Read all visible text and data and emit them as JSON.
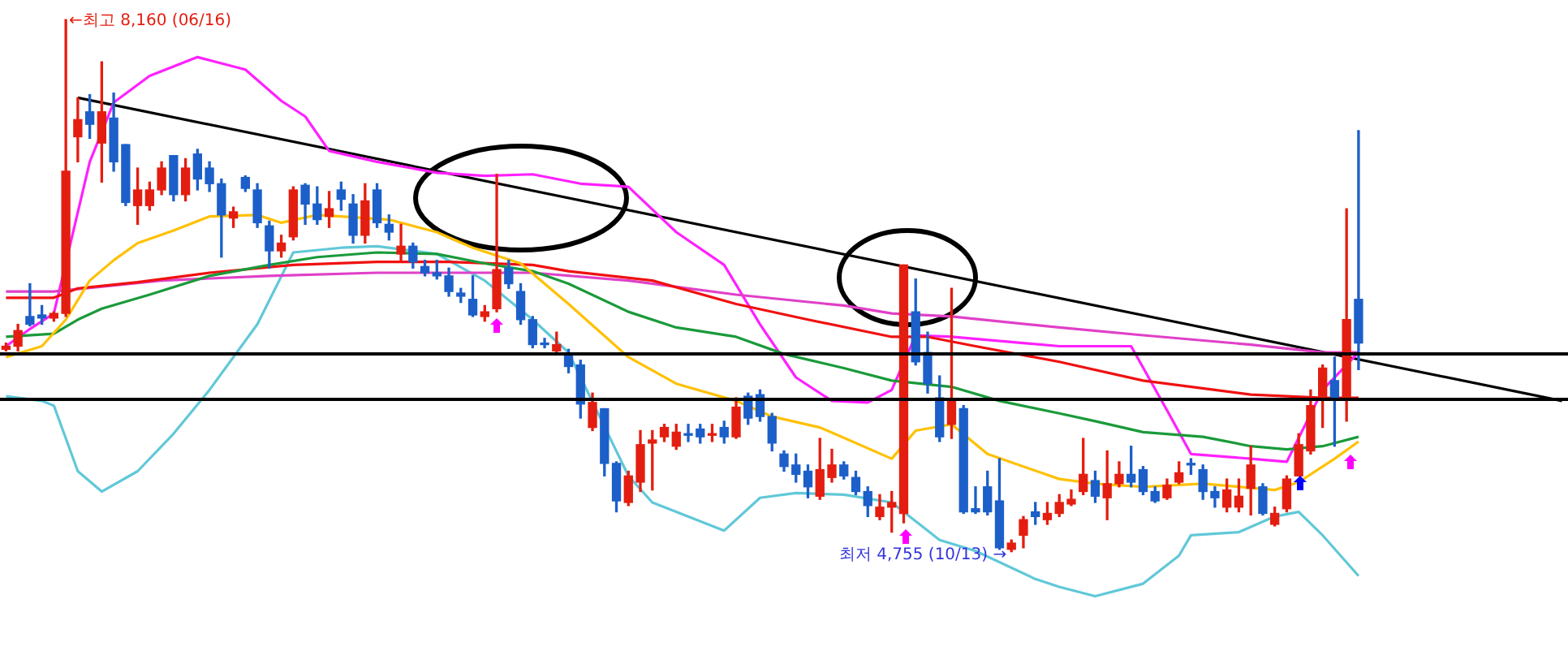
{
  "chart_data": {
    "type": "candlestick",
    "tick_labels": false,
    "legend": false,
    "categories": [
      null,
      null,
      null,
      null,
      null,
      null,
      null,
      null,
      null,
      null,
      null,
      null,
      null,
      null,
      null,
      null,
      null,
      null,
      null,
      null,
      null,
      null,
      null,
      null,
      null,
      null,
      null,
      null,
      null,
      null,
      null,
      null,
      null,
      null,
      null,
      null,
      null,
      null,
      null,
      null,
      null,
      null,
      null,
      null,
      null,
      null,
      null,
      null,
      null,
      null,
      null,
      null,
      null,
      null,
      null,
      null,
      null,
      null,
      null,
      null,
      null,
      null,
      null,
      null,
      null,
      null,
      null,
      null,
      null,
      null,
      null,
      null,
      null,
      null,
      null,
      null,
      null,
      null,
      null,
      null,
      null,
      null,
      null,
      null,
      null,
      null,
      null,
      null,
      null,
      null,
      null,
      null,
      null,
      null,
      null,
      null,
      null,
      null,
      null,
      null,
      null,
      null,
      null,
      null,
      null,
      null,
      null,
      null,
      null,
      null,
      null,
      null,
      null,
      null,
      null,
      null,
      null,
      null,
      null,
      null,
      null,
      null,
      null,
      null,
      null,
      null,
      null,
      null,
      null,
      null,
      null
    ],
    "ohlc": [
      [
        6050,
        6090,
        6040,
        6070
      ],
      [
        6070,
        6210,
        6040,
        6170
      ],
      [
        6260,
        6470,
        6200,
        6210
      ],
      [
        6270,
        6330,
        6210,
        6250
      ],
      [
        6250,
        6290,
        6230,
        6280
      ],
      [
        6280,
        8160,
        6260,
        7190
      ],
      [
        7410,
        7660,
        7250,
        7520
      ],
      [
        7570,
        7680,
        7400,
        7490
      ],
      [
        7370,
        7890,
        7120,
        7570
      ],
      [
        7530,
        7690,
        7190,
        7250
      ],
      [
        7360,
        7360,
        6970,
        6990
      ],
      [
        6970,
        7210,
        6850,
        7070
      ],
      [
        6970,
        7120,
        6940,
        7070
      ],
      [
        7070,
        7250,
        7040,
        7210
      ],
      [
        7290,
        7290,
        7000,
        7040
      ],
      [
        7040,
        7270,
        7000,
        7210
      ],
      [
        7300,
        7330,
        7070,
        7140
      ],
      [
        7210,
        7250,
        7060,
        7110
      ],
      [
        7110,
        7140,
        6640,
        6910
      ],
      [
        6890,
        6960,
        6830,
        6930
      ],
      [
        7150,
        7160,
        7060,
        7080
      ],
      [
        7070,
        7110,
        6830,
        6860
      ],
      [
        6840,
        6870,
        6570,
        6680
      ],
      [
        6680,
        6780,
        6640,
        6730
      ],
      [
        6770,
        7090,
        6750,
        7070
      ],
      [
        7100,
        7110,
        6850,
        6980
      ],
      [
        6980,
        7090,
        6850,
        6880
      ],
      [
        6900,
        7060,
        6830,
        6950
      ],
      [
        7070,
        7120,
        6940,
        7010
      ],
      [
        6980,
        7040,
        6730,
        6780
      ],
      [
        6780,
        7110,
        6730,
        7000
      ],
      [
        7070,
        7110,
        6830,
        6860
      ],
      [
        6850,
        6910,
        6750,
        6800
      ],
      [
        6660,
        6850,
        6620,
        6710
      ],
      [
        6710,
        6730,
        6570,
        6610
      ],
      [
        6580,
        6620,
        6520,
        6540
      ],
      [
        6540,
        6620,
        6500,
        6520
      ],
      [
        6520,
        6570,
        6390,
        6420
      ],
      [
        6410,
        6440,
        6350,
        6390
      ],
      [
        6370,
        6520,
        6260,
        6270
      ],
      [
        6260,
        6330,
        6230,
        6290
      ],
      [
        6310,
        7170,
        6290,
        6560
      ],
      [
        6570,
        6620,
        6440,
        6470
      ],
      [
        6420,
        6470,
        6210,
        6240
      ],
      [
        6240,
        6260,
        6060,
        6080
      ],
      [
        6090,
        6120,
        6060,
        6080
      ],
      [
        6040,
        6160,
        6020,
        6080
      ],
      [
        6020,
        6050,
        5900,
        5940
      ],
      [
        5950,
        5980,
        5610,
        5700
      ],
      [
        5550,
        5770,
        5530,
        5710
      ],
      [
        5670,
        5670,
        5240,
        5320
      ],
      [
        5320,
        5330,
        5010,
        5080
      ],
      [
        5070,
        5270,
        5050,
        5240
      ],
      [
        5200,
        5530,
        5140,
        5440
      ],
      [
        5450,
        5530,
        5150,
        5470
      ],
      [
        5490,
        5570,
        5460,
        5550
      ],
      [
        5430,
        5570,
        5410,
        5520
      ],
      [
        5510,
        5570,
        5460,
        5500
      ],
      [
        5540,
        5570,
        5450,
        5490
      ],
      [
        5500,
        5570,
        5460,
        5510
      ],
      [
        5550,
        5590,
        5450,
        5490
      ],
      [
        5490,
        5740,
        5480,
        5680
      ],
      [
        5750,
        5770,
        5570,
        5610
      ],
      [
        5760,
        5790,
        5590,
        5620
      ],
      [
        5620,
        5640,
        5400,
        5450
      ],
      [
        5380,
        5400,
        5270,
        5300
      ],
      [
        5310,
        5380,
        5200,
        5250
      ],
      [
        5270,
        5310,
        5100,
        5170
      ],
      [
        5110,
        5480,
        5090,
        5280
      ],
      [
        5230,
        5410,
        5200,
        5310
      ],
      [
        5310,
        5330,
        5220,
        5240
      ],
      [
        5230,
        5270,
        5120,
        5140
      ],
      [
        5140,
        5170,
        4980,
        5050
      ],
      [
        4980,
        5120,
        4960,
        5040
      ],
      [
        5040,
        5140,
        4880,
        5070
      ],
      [
        5000,
        6590,
        4940,
        6590
      ],
      [
        6290,
        6500,
        5950,
        5970
      ],
      [
        6030,
        6160,
        5770,
        5830
      ],
      [
        5740,
        5880,
        5460,
        5490
      ],
      [
        5570,
        6440,
        5480,
        5720
      ],
      [
        5670,
        5690,
        5000,
        5010
      ],
      [
        5030,
        5170,
        5000,
        5010
      ],
      [
        5170,
        5270,
        4990,
        5010
      ],
      [
        5080,
        5350,
        4770,
        4780
      ],
      [
        4770,
        4830,
        4755,
        4810
      ],
      [
        4860,
        4980,
        4780,
        4960
      ],
      [
        5010,
        5070,
        4930,
        4980
      ],
      [
        4960,
        5070,
        4930,
        5000
      ],
      [
        5000,
        5120,
        4980,
        5070
      ],
      [
        5060,
        5150,
        5050,
        5090
      ],
      [
        5140,
        5480,
        5120,
        5250
      ],
      [
        5210,
        5270,
        5070,
        5110
      ],
      [
        5100,
        5400,
        4960,
        5190
      ],
      [
        5190,
        5330,
        5170,
        5250
      ],
      [
        5250,
        5430,
        5170,
        5200
      ],
      [
        5280,
        5300,
        5120,
        5140
      ],
      [
        5140,
        5170,
        5070,
        5080
      ],
      [
        5100,
        5220,
        5090,
        5180
      ],
      [
        5200,
        5330,
        5190,
        5260
      ],
      [
        5320,
        5350,
        5250,
        5310
      ],
      [
        5280,
        5310,
        5090,
        5140
      ],
      [
        5140,
        5170,
        5040,
        5100
      ],
      [
        5040,
        5220,
        5010,
        5150
      ],
      [
        5040,
        5220,
        5010,
        5110
      ],
      [
        5160,
        5430,
        4990,
        5310
      ],
      [
        5170,
        5190,
        4990,
        5000
      ],
      [
        4930,
        5040,
        4920,
        5000
      ],
      [
        5030,
        5240,
        5010,
        5220
      ],
      [
        5240,
        5510,
        5240,
        5440
      ],
      [
        5400,
        5790,
        5380,
        5690
      ],
      [
        5730,
        5950,
        5550,
        5930
      ],
      [
        5850,
        6000,
        5430,
        5740
      ],
      [
        5740,
        6950,
        5590,
        6240
      ],
      [
        6370,
        7450,
        5920,
        6090
      ],
      null,
      null,
      null,
      null,
      null,
      null,
      null,
      null,
      null,
      null,
      null,
      null,
      null,
      null,
      null,
      null,
      null
    ],
    "colors": [
      "#e31e10",
      "#e31e10",
      "#1c5fc9",
      "#1c5fc9",
      "#e31e10",
      "#e31e10",
      "#e31e10",
      "#1c5fc9",
      "#e31e10",
      "#1c5fc9",
      "#1c5fc9",
      "#e31e10",
      "#e31e10",
      "#e31e10",
      "#1c5fc9",
      "#e31e10",
      "#1c5fc9",
      "#1c5fc9",
      "#1c5fc9",
      "#e31e10",
      "#1c5fc9",
      "#1c5fc9",
      "#1c5fc9",
      "#e31e10",
      "#e31e10",
      "#1c5fc9",
      "#1c5fc9",
      "#e31e10",
      "#1c5fc9",
      "#1c5fc9",
      "#e31e10",
      "#1c5fc9",
      "#1c5fc9",
      "#e31e10",
      "#1c5fc9",
      "#1c5fc9",
      "#1c5fc9",
      "#1c5fc9",
      "#1c5fc9",
      "#1c5fc9",
      "#e31e10",
      "#e31e10",
      "#1c5fc9",
      "#1c5fc9",
      "#1c5fc9",
      "#1c5fc9",
      "#e31e10",
      "#1c5fc9",
      "#1c5fc9",
      "#e31e10",
      "#1c5fc9",
      "#1c5fc9",
      "#e31e10",
      "#e31e10",
      "#e31e10",
      "#e31e10",
      "#e31e10",
      "#1c5fc9",
      "#1c5fc9",
      "#e31e10",
      "#1c5fc9",
      "#e31e10",
      "#1c5fc9",
      "#1c5fc9",
      "#1c5fc9",
      "#1c5fc9",
      "#1c5fc9",
      "#1c5fc9",
      "#e31e10",
      "#e31e10",
      "#1c5fc9",
      "#1c5fc9",
      "#1c5fc9",
      "#e31e10",
      "#e31e10",
      "#e31e10",
      "#1c5fc9",
      "#1c5fc9",
      "#1c5fc9",
      "#e31e10",
      "#1c5fc9",
      "#1c5fc9",
      "#1c5fc9",
      "#1c5fc9",
      "#e31e10",
      "#e31e10",
      "#1c5fc9",
      "#e31e10",
      "#e31e10",
      "#e31e10",
      "#e31e10",
      "#1c5fc9",
      "#e31e10",
      "#e31e10",
      "#1c5fc9",
      "#1c5fc9",
      "#1c5fc9",
      "#e31e10",
      "#e31e10",
      "#1c5fc9",
      "#1c5fc9",
      "#1c5fc9",
      "#e31e10",
      "#e31e10",
      "#e31e10",
      "#1c5fc9",
      "#e31e10",
      "#e31e10",
      "#e31e10",
      "#e31e10",
      "#e31e10",
      "#1c5fc9",
      "#e31e10",
      "#1c5fc9",
      null,
      null,
      null,
      null,
      null,
      null,
      null,
      null,
      null,
      null,
      null,
      null,
      null,
      null,
      null,
      null,
      null
    ],
    "series": [
      {
        "type": "line",
        "color": "#ffc000",
        "values": [
          6000,
          null,
          null,
          6070,
          null,
          6240,
          null,
          6490,
          null,
          6620,
          null,
          6730,
          null,
          null,
          6810,
          null,
          null,
          6900,
          null,
          null,
          null,
          6910,
          null,
          6860,
          null,
          null,
          6910,
          null,
          6900,
          null,
          null,
          null,
          6880,
          null,
          null,
          null,
          6800,
          null,
          null,
          6700,
          null,
          null,
          null,
          6600,
          null,
          null,
          null,
          6340,
          null,
          null,
          null,
          null,
          6000,
          null,
          null,
          null,
          5830,
          null,
          null,
          null,
          null,
          5720,
          null,
          null,
          5620,
          null,
          null,
          null,
          5550,
          null,
          null,
          null,
          null,
          null,
          5350,
          null,
          5530,
          null,
          null,
          5570,
          null,
          null,
          5380,
          null,
          null,
          null,
          null,
          null,
          5220,
          null,
          null,
          5190,
          null,
          null,
          null,
          5170,
          null,
          null,
          null,
          null,
          5190,
          null,
          null,
          5170,
          null,
          null,
          5150,
          null,
          5200,
          null,
          null,
          5350,
          null,
          5460,
          null,
          null,
          null,
          null,
          null,
          null,
          null,
          null,
          null,
          null,
          null,
          null,
          null,
          null,
          null,
          null,
          null
        ]
      },
      {
        "type": "line",
        "color": "#1a9a3a",
        "values": [
          6130,
          null,
          null,
          null,
          6150,
          null,
          6240,
          null,
          6310,
          null,
          null,
          null,
          6400,
          null,
          null,
          null,
          null,
          6520,
          null,
          null,
          null,
          null,
          6590,
          null,
          null,
          null,
          6640,
          null,
          null,
          null,
          null,
          6670,
          null,
          null,
          null,
          null,
          6660,
          null,
          null,
          null,
          6600,
          null,
          null,
          null,
          6550,
          null,
          null,
          6470,
          null,
          null,
          null,
          null,
          6290,
          null,
          null,
          null,
          6190,
          null,
          null,
          null,
          null,
          6130,
          null,
          null,
          null,
          6020,
          null,
          null,
          null,
          null,
          5930,
          null,
          null,
          null,
          5850,
          null,
          null,
          null,
          null,
          5810,
          null,
          null,
          null,
          5720,
          null,
          null,
          null,
          null,
          5640,
          null,
          null,
          5590,
          null,
          null,
          null,
          5520,
          null,
          null,
          null,
          null,
          5490,
          null,
          null,
          null,
          5430,
          null,
          null,
          5410,
          null,
          null,
          5430,
          null,
          null,
          5490,
          null,
          null,
          null,
          null,
          null,
          null,
          null,
          null,
          null,
          null,
          null,
          null,
          null,
          null,
          null,
          null,
          null
        ]
      },
      {
        "type": "line",
        "color": "#f01010",
        "values": [
          6380,
          null,
          null,
          null,
          6380,
          null,
          6440,
          null,
          null,
          null,
          null,
          6480,
          null,
          null,
          null,
          null,
          null,
          6540,
          null,
          null,
          null,
          null,
          null,
          null,
          6590,
          null,
          null,
          null,
          null,
          null,
          null,
          6610,
          null,
          null,
          null,
          null,
          null,
          6610,
          null,
          null,
          null,
          null,
          null,
          null,
          6590,
          null,
          null,
          6550,
          null,
          null,
          null,
          null,
          null,
          null,
          6490,
          null,
          null,
          null,
          null,
          null,
          null,
          6340,
          null,
          null,
          null,
          null,
          null,
          6240,
          null,
          null,
          null,
          null,
          null,
          null,
          6130,
          null,
          null,
          6130,
          null,
          null,
          null,
          6070,
          null,
          null,
          null,
          null,
          null,
          null,
          5970,
          null,
          null,
          null,
          null,
          null,
          null,
          5850,
          null,
          null,
          null,
          null,
          null,
          null,
          null,
          null,
          5760,
          null,
          null,
          null,
          null,
          null,
          5740,
          null,
          null,
          5740,
          null,
          null,
          null,
          null,
          null,
          null,
          null,
          null,
          null,
          null,
          null,
          null,
          null,
          null,
          null,
          null,
          null
        ]
      },
      {
        "type": "line",
        "color": "#e040c8",
        "values": [
          6420,
          null,
          null,
          null,
          6420,
          null,
          null,
          null,
          null,
          null,
          null,
          null,
          null,
          6490,
          null,
          null,
          null,
          null,
          null,
          null,
          null,
          null,
          6520,
          null,
          null,
          null,
          null,
          null,
          null,
          null,
          null,
          6540,
          null,
          null,
          null,
          null,
          null,
          null,
          null,
          null,
          null,
          null,
          null,
          null,
          6540,
          null,
          null,
          null,
          null,
          null,
          null,
          null,
          6490,
          null,
          null,
          null,
          null,
          null,
          null,
          null,
          null,
          6400,
          null,
          null,
          null,
          null,
          null,
          null,
          null,
          null,
          6330,
          null,
          null,
          null,
          6280,
          null,
          null,
          null,
          null,
          6260,
          null,
          null,
          null,
          null,
          null,
          null,
          null,
          null,
          6190,
          null,
          null,
          null,
          null,
          null,
          null,
          6140,
          null,
          null,
          null,
          null,
          null,
          null,
          null,
          null,
          6080,
          null,
          null,
          null,
          null,
          null,
          6030,
          null,
          null,
          6030,
          null,
          null,
          null,
          null,
          null,
          null,
          null,
          null,
          null,
          null,
          null,
          null,
          null,
          null,
          null,
          null,
          null
        ]
      },
      {
        "type": "line",
        "color": "#ff20ff",
        "values": [
          6070,
          null,
          6180,
          null,
          6280,
          null,
          null,
          7250,
          null,
          7630,
          null,
          null,
          7800,
          null,
          null,
          null,
          7920,
          null,
          null,
          null,
          7840,
          null,
          null,
          7640,
          null,
          7540,
          null,
          7320,
          null,
          null,
          null,
          7250,
          null,
          null,
          null,
          null,
          7180,
          null,
          null,
          null,
          7160,
          null,
          null,
          null,
          7170,
          null,
          null,
          null,
          7110,
          null,
          null,
          null,
          7090,
          null,
          null,
          null,
          6800,
          null,
          null,
          null,
          6590,
          null,
          null,
          6210,
          null,
          null,
          5870,
          null,
          null,
          5720,
          null,
          null,
          5710,
          null,
          5790,
          null,
          6140,
          null,
          null,
          6130,
          null,
          null,
          null,
          null,
          null,
          null,
          null,
          null,
          6070,
          null,
          null,
          null,
          null,
          null,
          6070,
          null,
          null,
          5660,
          null,
          5380,
          null,
          null,
          null,
          null,
          5350,
          null,
          null,
          5330,
          null,
          null,
          5790,
          null,
          null,
          6030,
          null,
          null,
          null,
          null,
          null,
          null,
          null,
          null,
          null,
          null,
          null,
          null,
          null,
          null,
          null,
          null,
          null
        ]
      },
      {
        "type": "line",
        "color": "#60c8d8",
        "values": [
          5750,
          null,
          null,
          5720,
          5690,
          null,
          5270,
          null,
          5140,
          null,
          null,
          5270,
          null,
          null,
          5510,
          null,
          null,
          5790,
          null,
          null,
          null,
          6210,
          null,
          null,
          6670,
          null,
          null,
          null,
          6700,
          null,
          null,
          6710,
          null,
          null,
          null,
          null,
          6660,
          null,
          null,
          null,
          6490,
          null,
          null,
          null,
          6240,
          null,
          null,
          6030,
          null,
          null,
          null,
          null,
          5240,
          null,
          5070,
          null,
          null,
          null,
          null,
          null,
          4890,
          null,
          null,
          5100,
          null,
          null,
          5130,
          null,
          null,
          null,
          5120,
          null,
          null,
          null,
          5070,
          null,
          null,
          null,
          4830,
          null,
          null,
          4760,
          null,
          null,
          null,
          null,
          4580,
          null,
          4530,
          null,
          null,
          4470,
          null,
          null,
          null,
          4550,
          null,
          null,
          4730,
          4860,
          null,
          null,
          null,
          4880,
          null,
          null,
          4980,
          null,
          5010,
          null,
          4860,
          null,
          null,
          4600,
          null,
          null,
          null,
          null,
          null,
          null,
          null,
          null,
          null,
          null,
          null,
          null,
          null,
          null,
          null,
          null,
          null
        ]
      },
      {
        "type": "line",
        "color": "#000000",
        "values": [
          null,
          null,
          null,
          null,
          null,
          null,
          7660,
          null,
          null,
          null,
          null,
          null,
          null,
          null,
          null,
          null,
          null,
          null,
          null,
          null,
          null,
          null,
          null,
          null,
          null,
          null,
          null,
          null,
          null,
          null,
          null,
          null,
          null,
          null,
          null,
          null,
          null,
          null,
          null,
          null,
          null,
          null,
          null,
          null,
          null,
          null,
          null,
          null,
          null,
          null,
          null,
          null,
          null,
          null,
          null,
          null,
          null,
          null,
          null,
          null,
          null,
          null,
          null,
          null,
          null,
          null,
          null,
          null,
          null,
          null,
          null,
          null,
          null,
          null,
          null,
          null,
          null,
          null,
          null,
          null,
          null,
          null,
          null,
          null,
          null,
          null,
          null,
          null,
          null,
          null,
          null,
          null,
          null,
          null,
          null,
          null,
          null,
          null,
          null,
          null,
          null,
          null,
          null,
          null,
          null,
          null,
          null,
          null,
          null,
          null,
          null,
          null,
          null,
          null,
          null,
          null,
          null,
          null,
          null,
          null,
          null,
          null,
          null,
          null,
          null,
          null,
          null,
          null,
          null,
          null,
          5720
        ]
      }
    ],
    "ref_lines": [
      {
        "axis": "y",
        "value": 6020,
        "color": "#000000"
      },
      {
        "axis": "y",
        "value": 5730,
        "color": "#000000"
      }
    ],
    "annotations": [
      "←최고 8,160 (06/16)",
      "최저 4,755 (10/13) →"
    ]
  }
}
